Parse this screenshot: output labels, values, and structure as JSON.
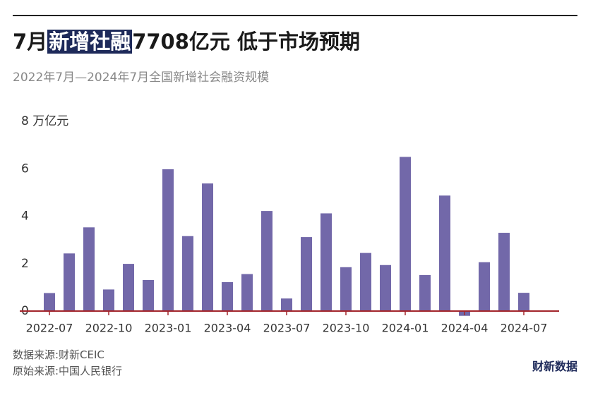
{
  "chart_data": {
    "type": "bar",
    "title": [
      "7月",
      "新增社融",
      "7708亿元 低于市场预期"
    ],
    "subtitle": "2022年7月—2024年7月全国新增社会融资规模",
    "source": "数据来源:财新CEIC",
    "original_source": "原始来源:中国人民银行",
    "brand": "财新数据",
    "categories": [
      "2022-07",
      null,
      null,
      "2022-10",
      null,
      null,
      "2023-01",
      null,
      null,
      "2023-04",
      null,
      null,
      "2023-07",
      null,
      null,
      "2023-10",
      null,
      null,
      "2024-01",
      null,
      null,
      "2024-04",
      null,
      null,
      "2024-07"
    ],
    "values": [
      0.76,
      2.43,
      3.53,
      0.91,
      1.99,
      1.31,
      5.98,
      3.16,
      5.38,
      1.22,
      1.56,
      4.22,
      0.53,
      3.12,
      4.12,
      1.85,
      2.45,
      1.94,
      6.5,
      1.52,
      4.87,
      -0.2,
      2.06,
      3.3,
      0.77
    ],
    "color": "#7268a9",
    "axis_color": "#a3252b",
    "ylim": [
      0,
      8
    ],
    "yticks": [
      0,
      2,
      4,
      6,
      {
        "value": 8,
        "label": "8 万亿元"
      }
    ],
    "grid": false
  }
}
